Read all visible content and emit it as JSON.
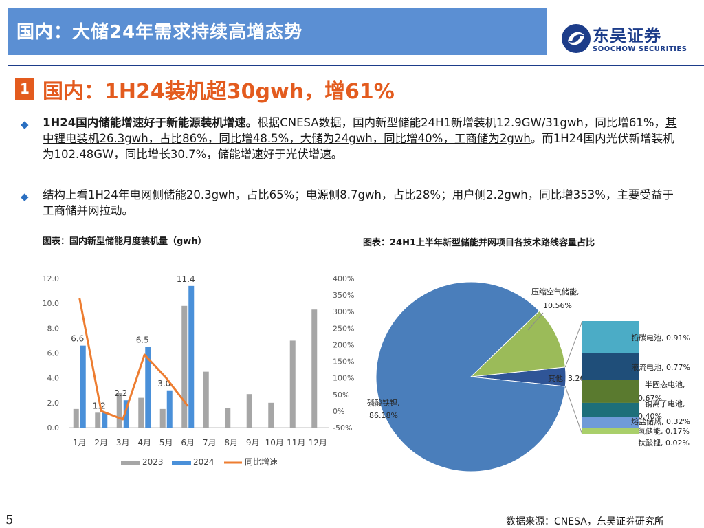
{
  "header": {
    "title": "国内：大储24年需求持续高增态势"
  },
  "logo": {
    "cn": "东吴证券",
    "en": "SOOCHOW SECURITIES"
  },
  "section": {
    "number": "1",
    "title": "国内：1H24装机超30gwh，增61%"
  },
  "bullets": [
    {
      "lead": "1H24国内储能增速好于新能源装机增速。",
      "text1": "根据CNESA数据，国内新型储能24H1新增装机12.9GW/31gwh，同比增61%，",
      "underline": "其中锂电装机26.3gwh，占比86%，同比增48.5%，大储为24gwh，同比增40%，工商储为2gwh",
      "text2": "。而1H24国内光伏新增装机为102.48GW，同比增长30.7%，储能增速好于光伏增速。"
    },
    {
      "text": "结构上看1H24年电网侧储能20.3gwh，占比65%；电源侧8.7gwh，占比28%；用户侧2.2gwh，同比增353%，主要受益于工商储并网拉动。"
    }
  ],
  "captions": {
    "left": "图表：国内新型储能月度装机量（gwh）",
    "right": "图表：24H1上半年新型储能并网项目各技术路线容量占比"
  },
  "chart_data": [
    {
      "type": "bar",
      "categories": [
        "1月",
        "2月",
        "3月",
        "4月",
        "5月",
        "6月",
        "7月",
        "8月",
        "9月",
        "10月",
        "11月",
        "12月"
      ],
      "series": [
        {
          "name": "2023",
          "values": [
            1.5,
            1.2,
            2.8,
            2.4,
            1.5,
            9.8,
            4.5,
            1.6,
            2.7,
            2.0,
            7.0,
            9.5
          ],
          "color": "#a6a6a6"
        },
        {
          "name": "2024",
          "values": [
            6.6,
            1.2,
            2.2,
            6.5,
            3.0,
            11.4,
            null,
            null,
            null,
            null,
            null,
            null
          ],
          "color": "#4a90d9",
          "labels": [
            "6.6",
            "1.2",
            "2.2",
            "6.5",
            "3.0",
            "11.4"
          ]
        },
        {
          "name": "同比增速",
          "type": "line",
          "axis": "right",
          "values": [
            340,
            0,
            -25,
            170,
            100,
            15,
            null,
            null,
            null,
            null,
            null,
            null
          ],
          "color": "#ed7d31"
        }
      ],
      "y_ticks": [
        "0.0",
        "2.0",
        "4.0",
        "6.0",
        "8.0",
        "10.0",
        "12.0"
      ],
      "ylim": [
        0,
        12
      ],
      "y2_ticks": [
        "-50%",
        "0%",
        "50%",
        "100%",
        "150%",
        "200%",
        "250%",
        "300%",
        "350%",
        "400%"
      ],
      "y2lim": [
        -50,
        400
      ],
      "legend": "bottom"
    },
    {
      "type": "pie",
      "slices": [
        {
          "label": "磷酸铁锂,",
          "value_label": "86.18%",
          "value": 86.18,
          "color": "#4a7ebb"
        },
        {
          "label": "压缩空气储能,",
          "value_label": "10.56%",
          "value": 10.56,
          "color": "#9bbb59"
        },
        {
          "label": "其他,",
          "value_label": "3.26%",
          "value": 3.26,
          "color": "#2f5597"
        }
      ],
      "breakdown_of": "其他",
      "breakdown": [
        {
          "label": "铅碳电池, 0.91%",
          "value": 0.91,
          "color": "#4bacc6"
        },
        {
          "label": "液流电池, 0.77%",
          "value": 0.77,
          "color": "#1f4e79"
        },
        {
          "label": "半固态电池,",
          "label2": "0.67%",
          "value": 0.67,
          "color": "#5a7a2f"
        },
        {
          "label": "钠离子电池,",
          "label2": "0.40%",
          "value": 0.4,
          "color": "#1d6f7a"
        },
        {
          "label": "熔盐储热, 0.32%",
          "value": 0.32,
          "color": "#6f9bd8"
        },
        {
          "label": "氢储能, 0.17%",
          "value": 0.17,
          "color": "#a9cf6a"
        },
        {
          "label": "钛酸锂, 0.02%",
          "value": 0.02,
          "color": "#b4c7e7"
        }
      ]
    }
  ],
  "footer": {
    "page": "5",
    "source": "数据来源：CNESA，东吴证券研究所"
  }
}
